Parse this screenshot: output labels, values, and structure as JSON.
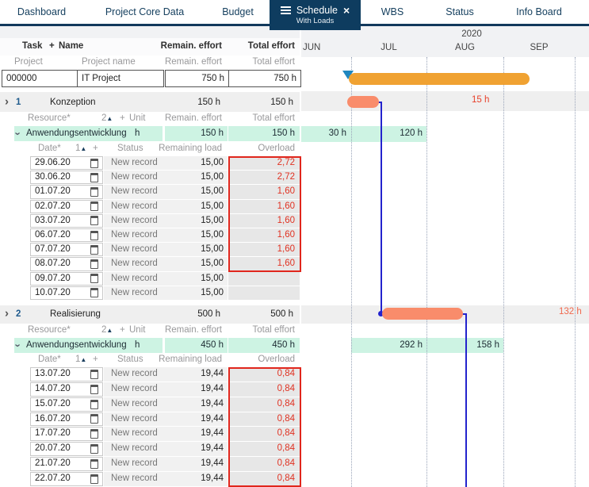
{
  "nav": {
    "tabs": [
      {
        "label": "Dashboard",
        "active": false
      },
      {
        "label": "Project Core Data",
        "active": false
      },
      {
        "label": "Budget",
        "active": false
      },
      {
        "label": "Schedule",
        "subtitle": "With Loads",
        "active": true,
        "closable": true
      },
      {
        "label": "WBS",
        "active": false
      },
      {
        "label": "Status",
        "active": false
      },
      {
        "label": "Info Board",
        "active": false
      }
    ]
  },
  "table": {
    "header": {
      "task": "Task",
      "plus": "+",
      "name": "Name",
      "remain": "Remain. effort",
      "total": "Total effort"
    },
    "project_header": {
      "task": "Project",
      "name": "Project name",
      "remain": "Remain. effort",
      "total": "Total effort"
    },
    "project_row": {
      "id": "000000",
      "name": "IT Project",
      "remain": "750 h",
      "total": "750 h"
    },
    "resource_header": {
      "label": "Resource*",
      "sort": "2",
      "sort_icon": "▲",
      "plus": "+",
      "unit": "Unit",
      "remain": "Remain. effort",
      "total": "Total effort"
    },
    "date_header": {
      "label": "Date*",
      "sort": "1",
      "sort_icon": "▲",
      "plus": "+",
      "status": "Status",
      "remain": "Remaining load",
      "over": "Overload"
    },
    "tasks": [
      {
        "id": "1",
        "name": "Konzeption",
        "remain": "150 h",
        "total": "150 h",
        "resource": {
          "name": "Anwendungsentwicklung",
          "unit": "h",
          "remain": "150 h",
          "total": "150 h"
        },
        "entries": [
          {
            "date": "29.06.20",
            "status": "New record",
            "load": "15,00",
            "overload": "2,72"
          },
          {
            "date": "30.06.20",
            "status": "New record",
            "load": "15,00",
            "overload": "2,72"
          },
          {
            "date": "01.07.20",
            "status": "New record",
            "load": "15,00",
            "overload": "1,60"
          },
          {
            "date": "02.07.20",
            "status": "New record",
            "load": "15,00",
            "overload": "1,60"
          },
          {
            "date": "03.07.20",
            "status": "New record",
            "load": "15,00",
            "overload": "1,60"
          },
          {
            "date": "06.07.20",
            "status": "New record",
            "load": "15,00",
            "overload": "1,60"
          },
          {
            "date": "07.07.20",
            "status": "New record",
            "load": "15,00",
            "overload": "1,60"
          },
          {
            "date": "08.07.20",
            "status": "New record",
            "load": "15,00",
            "overload": "1,60"
          },
          {
            "date": "09.07.20",
            "status": "New record",
            "load": "15,00",
            "overload": ""
          },
          {
            "date": "10.07.20",
            "status": "New record",
            "load": "15,00",
            "overload": ""
          }
        ],
        "overload_marked_rows": 8
      },
      {
        "id": "2",
        "name": "Realisierung",
        "remain": "500 h",
        "total": "500 h",
        "resource": {
          "name": "Anwendungsentwicklung",
          "unit": "h",
          "remain": "450 h",
          "total": "450 h"
        },
        "entries": [
          {
            "date": "13.07.20",
            "status": "New record",
            "load": "19,44",
            "overload": "0,84"
          },
          {
            "date": "14.07.20",
            "status": "New record",
            "load": "19,44",
            "overload": "0,84"
          },
          {
            "date": "15.07.20",
            "status": "New record",
            "load": "19,44",
            "overload": "0,84"
          },
          {
            "date": "16.07.20",
            "status": "New record",
            "load": "19,44",
            "overload": "0,84"
          },
          {
            "date": "17.07.20",
            "status": "New record",
            "load": "19,44",
            "overload": "0,84"
          },
          {
            "date": "20.07.20",
            "status": "New record",
            "load": "19,44",
            "overload": "0,84"
          },
          {
            "date": "21.07.20",
            "status": "New record",
            "load": "19,44",
            "overload": "0,84"
          },
          {
            "date": "22.07.20",
            "status": "New record",
            "load": "19,44",
            "overload": "0,84"
          }
        ],
        "overload_marked_rows": 8
      }
    ]
  },
  "gantt": {
    "year": "2020",
    "months": [
      "JUN",
      "JUL",
      "AUG",
      "SEP"
    ],
    "summary": {
      "bar": "project-summary"
    },
    "task1": {
      "overload_label": "15 h",
      "capacity": {
        "jun": "30 h",
        "jul": "120 h"
      }
    },
    "task2": {
      "overload_label": "132 h",
      "capacity": {
        "jul": "292 h",
        "aug": "158 h"
      }
    }
  },
  "colors": {
    "accent_navy": "#0e3c5f",
    "bar_orange": "#f0a232",
    "bar_salmon": "#f98c6b",
    "capacity_mint": "#cdf3e3",
    "overload_red": "#e0261c",
    "link_blue": "#2323cd"
  }
}
